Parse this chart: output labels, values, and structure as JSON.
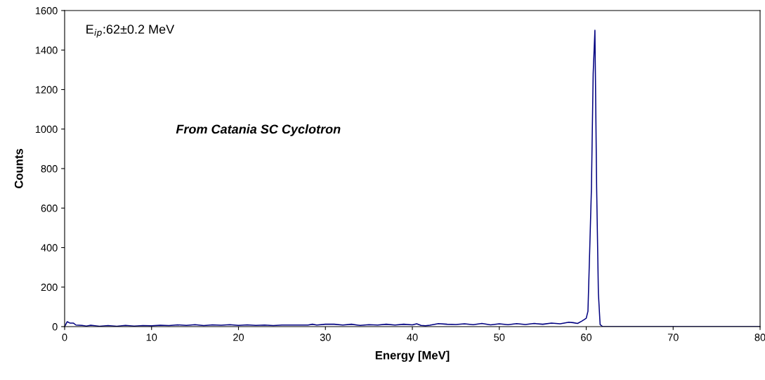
{
  "chart_data": {
    "type": "line",
    "xlabel": "Energy [MeV]",
    "ylabel": "Counts",
    "annotations": [
      "E$_{ip}$:62±0.2 MeV",
      "From Catania SC Cyclotron"
    ],
    "xlim": [
      0,
      80
    ],
    "xticks": [
      0,
      10,
      20,
      30,
      40,
      50,
      60,
      70,
      80
    ],
    "ylim": [
      0,
      1600
    ],
    "yticks": [
      0,
      200,
      400,
      600,
      800,
      1000,
      1200,
      1400,
      1600
    ],
    "grid": false,
    "marker": "none",
    "line_style": "solid",
    "series": [
      {
        "color": "#000080",
        "x": [
          0,
          0.3,
          0.6,
          1.0,
          1.3,
          2,
          2.5,
          3,
          4,
          5,
          6,
          7,
          8,
          9,
          10,
          11,
          12,
          13,
          14,
          15,
          16,
          17,
          18,
          19,
          20,
          21,
          22,
          23,
          24,
          25,
          26,
          27,
          28,
          28.5,
          29,
          30,
          31,
          32,
          33,
          34,
          35,
          36,
          37,
          38,
          39,
          40,
          40.5,
          41,
          41.5,
          42,
          43,
          44,
          45,
          46,
          47,
          48,
          49,
          50,
          51,
          52,
          53,
          54,
          55,
          56,
          57,
          58,
          58.5,
          59,
          59.5,
          60,
          60.2,
          60.4,
          60.6,
          60.8,
          61.0,
          61.2,
          61.4,
          61.6,
          61.9,
          80
        ],
        "values": [
          0,
          25,
          18,
          18,
          8,
          6,
          3,
          7,
          2,
          5,
          2,
          6,
          3,
          5,
          4,
          7,
          5,
          9,
          6,
          10,
          5,
          9,
          7,
          10,
          6,
          9,
          6,
          8,
          5,
          8,
          8,
          8,
          8,
          12,
          8,
          12,
          12,
          8,
          12,
          6,
          10,
          8,
          12,
          8,
          12,
          9,
          14,
          6,
          4,
          7,
          15,
          12,
          11,
          14,
          10,
          16,
          9,
          14,
          10,
          15,
          11,
          16,
          12,
          18,
          14,
          22,
          20,
          16,
          28,
          42,
          78,
          384,
          700,
          1280,
          1500,
          700,
          170,
          10,
          0,
          0
        ]
      }
    ]
  }
}
